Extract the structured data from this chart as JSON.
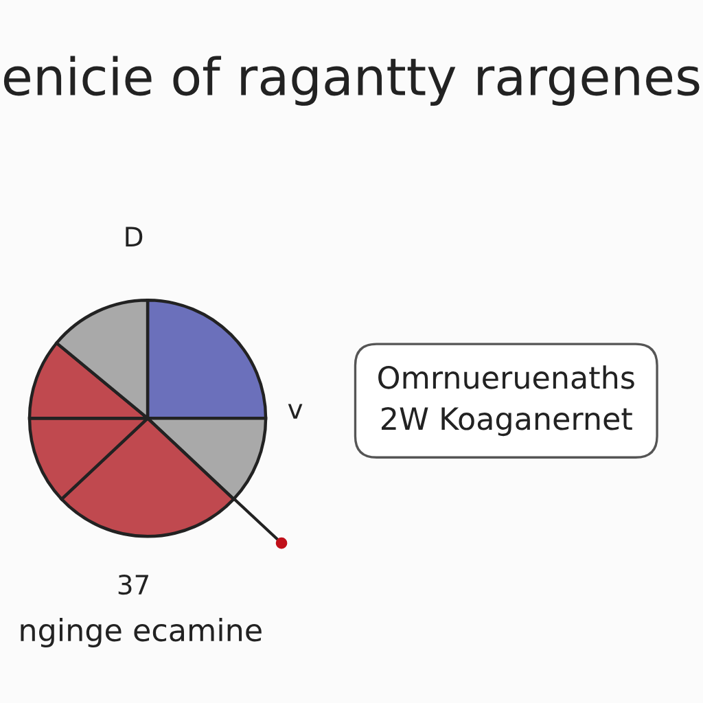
{
  "chart_data": {
    "type": "pie",
    "title": "enicie of ragantty rargenes",
    "categories": [
      null,
      null,
      null,
      null,
      null,
      null
    ],
    "values": [
      25,
      12,
      26,
      12,
      11,
      14
    ],
    "colors": [
      "#6b70bb",
      "#a9a9a9",
      "#c0494f",
      "#c0494f",
      "#c0494f",
      "#a9a9a9"
    ],
    "annotations": [
      "D",
      "v",
      "37",
      "nginge ecamine",
      "Omrnueruenaths\n2W Koaganernet"
    ],
    "legend": false
  }
}
